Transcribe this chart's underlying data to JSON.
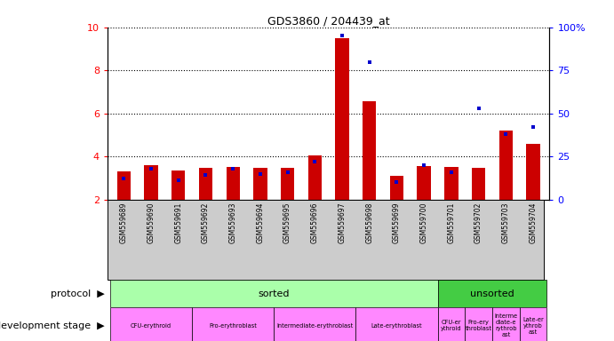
{
  "title": "GDS3860 / 204439_at",
  "samples": [
    "GSM559689",
    "GSM559690",
    "GSM559691",
    "GSM559692",
    "GSM559693",
    "GSM559694",
    "GSM559695",
    "GSM559696",
    "GSM559697",
    "GSM559698",
    "GSM559699",
    "GSM559700",
    "GSM559701",
    "GSM559702",
    "GSM559703",
    "GSM559704"
  ],
  "transformed_count": [
    3.3,
    3.6,
    3.35,
    3.45,
    3.5,
    3.45,
    3.45,
    4.05,
    9.5,
    6.55,
    3.1,
    3.55,
    3.5,
    3.45,
    5.2,
    4.6
  ],
  "percentile_rank": [
    12,
    18,
    11,
    14,
    18,
    15,
    16,
    22,
    95,
    80,
    10,
    20,
    16,
    53,
    38,
    42
  ],
  "ylim_left": [
    2,
    10
  ],
  "ylim_right": [
    0,
    100
  ],
  "yticks_left": [
    2,
    4,
    6,
    8,
    10
  ],
  "yticks_right": [
    0,
    25,
    50,
    75,
    100
  ],
  "bar_color": "#cc0000",
  "dot_color": "#0000cc",
  "tick_bg_color": "#cccccc",
  "protocol_sorted_color": "#aaffaa",
  "protocol_unsorted_color": "#44cc44",
  "dev_stage_color": "#ff88ff",
  "protocol_sorted_label": "sorted",
  "protocol_unsorted_label": "unsorted",
  "sorted_count": 12,
  "unsorted_count": 4
}
